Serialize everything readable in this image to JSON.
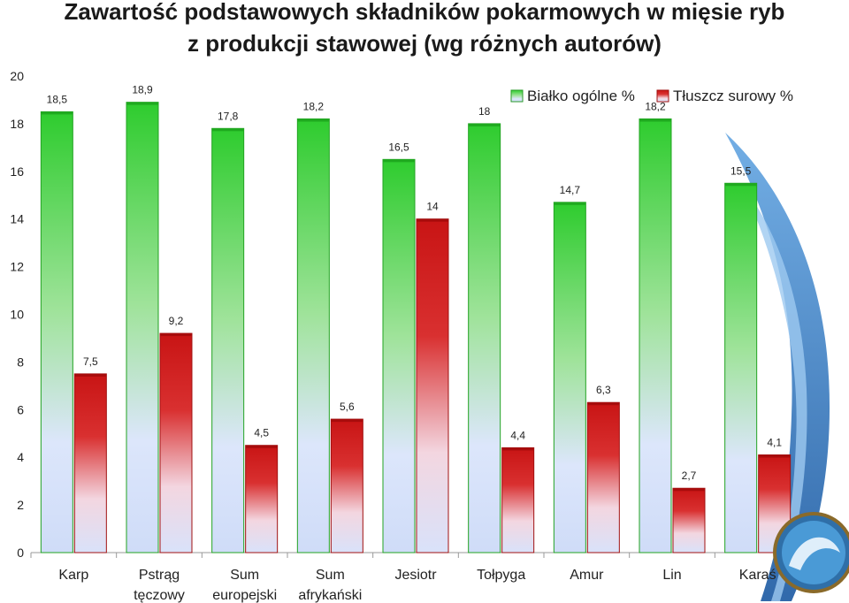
{
  "chart_data": {
    "type": "bar",
    "title_lines": [
      "Zawartość podstawowych składników pokarmowych w mięsie ryb",
      "z produkcji stawowej (wg różnych autorów)"
    ],
    "categories": [
      [
        "Karp"
      ],
      [
        "Pstrąg",
        "tęczowy"
      ],
      [
        "Sum",
        "europejski"
      ],
      [
        "Sum",
        "afrykański"
      ],
      [
        "Jesiotr"
      ],
      [
        "Tołpyga"
      ],
      [
        "Amur"
      ],
      [
        "Lin"
      ],
      [
        "Karaś"
      ]
    ],
    "series": [
      {
        "name": "Białko ogólne %",
        "values": [
          18.5,
          18.9,
          17.8,
          18.2,
          16.5,
          18,
          14.7,
          18.2,
          15.5
        ],
        "labels": [
          "18,5",
          "18,9",
          "17,8",
          "18,2",
          "16,5",
          "18",
          "14,7",
          "18,2",
          "15,5"
        ],
        "color": "#3ccf3c"
      },
      {
        "name": "Tłuszcz surowy %",
        "values": [
          7.5,
          9.2,
          4.5,
          5.6,
          14,
          4.4,
          6.3,
          2.7,
          4.1
        ],
        "labels": [
          "7,5",
          "9,2",
          "4,5",
          "5,6",
          "14",
          "4,4",
          "6,3",
          "2,7",
          "4,1"
        ],
        "color": "#d42020"
      }
    ],
    "ylim": [
      0,
      20
    ],
    "yticks": [
      0,
      2,
      4,
      6,
      8,
      10,
      12,
      14,
      16,
      18,
      20
    ],
    "grid": false,
    "legend": "top-right"
  }
}
